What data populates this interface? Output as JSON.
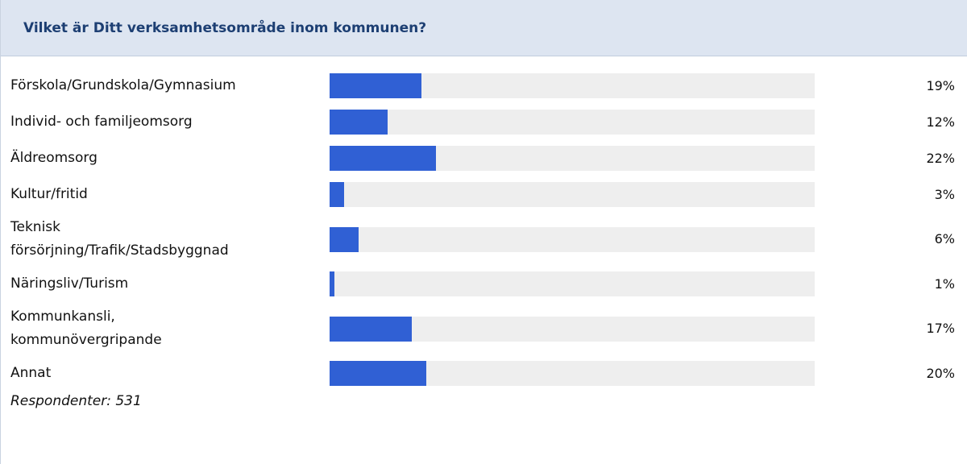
{
  "header": {
    "title": "Vilket är Ditt verksamhetsområde inom kommunen?"
  },
  "chart_data": {
    "type": "bar",
    "orientation": "horizontal",
    "categories": [
      [
        "Förskola/Grundskola/Gymnasium"
      ],
      [
        "Individ- och familjeomsorg"
      ],
      [
        "Äldreomsorg"
      ],
      [
        "Kultur/fritid"
      ],
      [
        "Teknisk",
        "försörjning/Trafik/Stadsbyggnad"
      ],
      [
        "Näringsliv/Turism"
      ],
      [
        "Kommunkansli,",
        "kommunövergripande"
      ],
      [
        "Annat"
      ]
    ],
    "values": [
      19,
      12,
      22,
      3,
      6,
      1,
      17,
      20
    ],
    "value_labels": [
      "19%",
      "12%",
      "22%",
      "3%",
      "6%",
      "1%",
      "17%",
      "20%"
    ],
    "xlim": [
      0,
      100
    ],
    "unit": "%",
    "bar_color": "#3060d4",
    "track_color": "#eeeeee"
  },
  "footer": {
    "respondents": "Respondenter: 531"
  }
}
